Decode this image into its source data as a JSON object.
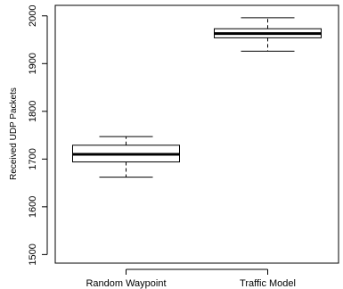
{
  "chart_data": {
    "type": "box",
    "title": "",
    "xlabel": "",
    "ylabel": "Received UDP Packets",
    "ylim": [
      1482,
      2022
    ],
    "yticks": [
      1500,
      1600,
      1700,
      1800,
      1900,
      2000
    ],
    "grid": false,
    "categories": [
      "Random Waypoint",
      "Traffic Model"
    ],
    "boxes": [
      {
        "name": "Random Waypoint",
        "whisker_low": 1662,
        "q1": 1694,
        "median": 1710,
        "q3": 1729,
        "whisker_high": 1747
      },
      {
        "name": "Traffic Model",
        "whisker_low": 1926,
        "q1": 1954,
        "median": 1963,
        "q3": 1973,
        "whisker_high": 1996
      }
    ]
  }
}
